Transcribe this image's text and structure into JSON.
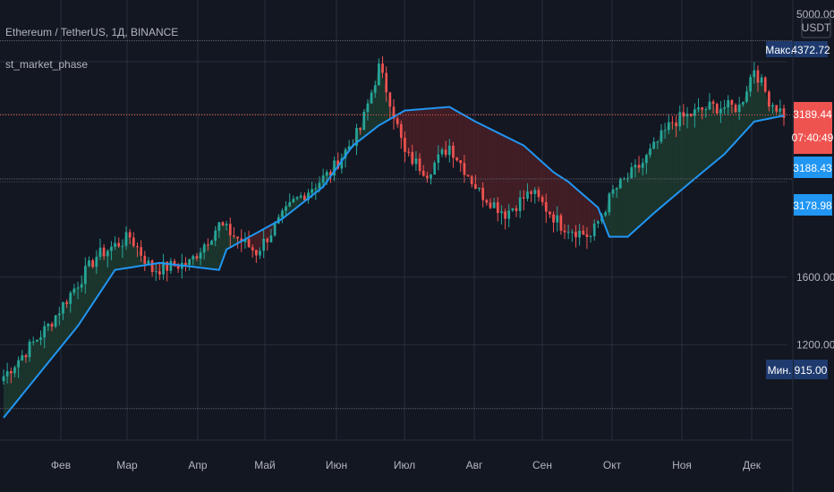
{
  "colors": {
    "background": "#131722",
    "grid": "#2a2e39",
    "up": "#26a69a",
    "down": "#ef5350",
    "phase_line": "#2196f3",
    "bull_fill": "#1d3b2f",
    "bear_fill": "#4a1f26",
    "badge_navy": "#1e3a6e",
    "price_label": "#ef5350",
    "blue_label": "#2196f3"
  },
  "header": {
    "symbol": "Ethereum / TetherUS, 1Д, BINANCE",
    "indicator": "st_market_phase"
  },
  "axis": {
    "currency": "USDT",
    "top_label": "5000.00"
  },
  "labels": {
    "max_name": "Макс.",
    "max_value": "4372.72",
    "min_name": "Мин.",
    "min_value": "915.00",
    "last_price": "3189.44",
    "countdown": "07:40:49",
    "blue1": "3188.43",
    "blue2": "3178.98"
  },
  "chart_data": {
    "type": "candlestick",
    "title": "Ethereum / TetherUS, 1Д, BINANCE",
    "indicator": "st_market_phase",
    "y_scale": "log",
    "ylim": [
      800,
      5200
    ],
    "y_ticks": [
      {
        "value": 1200,
        "label": "1200.00"
      },
      {
        "value": 1600,
        "label": "1600.00"
      }
    ],
    "x_ticks": [
      "Фев",
      "Мар",
      "Апр",
      "Май",
      "Июн",
      "Июл",
      "Авг",
      "Сен",
      "Окт",
      "Ноя",
      "Дек"
    ],
    "close_anchors": [
      [
        0,
        1050
      ],
      [
        12,
        1300
      ],
      [
        25,
        1750
      ],
      [
        34,
        1900
      ],
      [
        40,
        1650
      ],
      [
        50,
        1700
      ],
      [
        58,
        2000
      ],
      [
        68,
        1780
      ],
      [
        78,
        2200
      ],
      [
        88,
        2500
      ],
      [
        96,
        3000
      ],
      [
        101,
        3900
      ],
      [
        104,
        3400
      ],
      [
        108,
        2700
      ],
      [
        114,
        2500
      ],
      [
        120,
        2800
      ],
      [
        128,
        2300
      ],
      [
        135,
        2100
      ],
      [
        142,
        2300
      ],
      [
        150,
        2000
      ],
      [
        158,
        1900
      ],
      [
        164,
        2300
      ],
      [
        172,
        2600
      ],
      [
        180,
        3100
      ],
      [
        190,
        3300
      ],
      [
        198,
        3300
      ],
      [
        202,
        3900
      ],
      [
        206,
        3400
      ],
      [
        210,
        3200
      ]
    ],
    "phase_anchors": [
      [
        0,
        880
      ],
      [
        20,
        1300
      ],
      [
        30,
        1650
      ],
      [
        42,
        1700
      ],
      [
        58,
        1650
      ],
      [
        60,
        1800
      ],
      [
        75,
        2050
      ],
      [
        86,
        2350
      ],
      [
        94,
        2800
      ],
      [
        101,
        3050
      ],
      [
        108,
        3250
      ],
      [
        120,
        3300
      ],
      [
        127,
        3100
      ],
      [
        140,
        2800
      ],
      [
        148,
        2500
      ],
      [
        152,
        2400
      ],
      [
        160,
        2150
      ],
      [
        163,
        1900
      ],
      [
        168,
        1900
      ],
      [
        175,
        2100
      ],
      [
        185,
        2400
      ],
      [
        194,
        2700
      ],
      [
        202,
        3100
      ],
      [
        210,
        3180
      ]
    ],
    "price_lines": {
      "max": 4372.72,
      "min": 915.0,
      "last": 3189.44,
      "blue1": 3188.43,
      "blue2": 3178.98
    }
  }
}
